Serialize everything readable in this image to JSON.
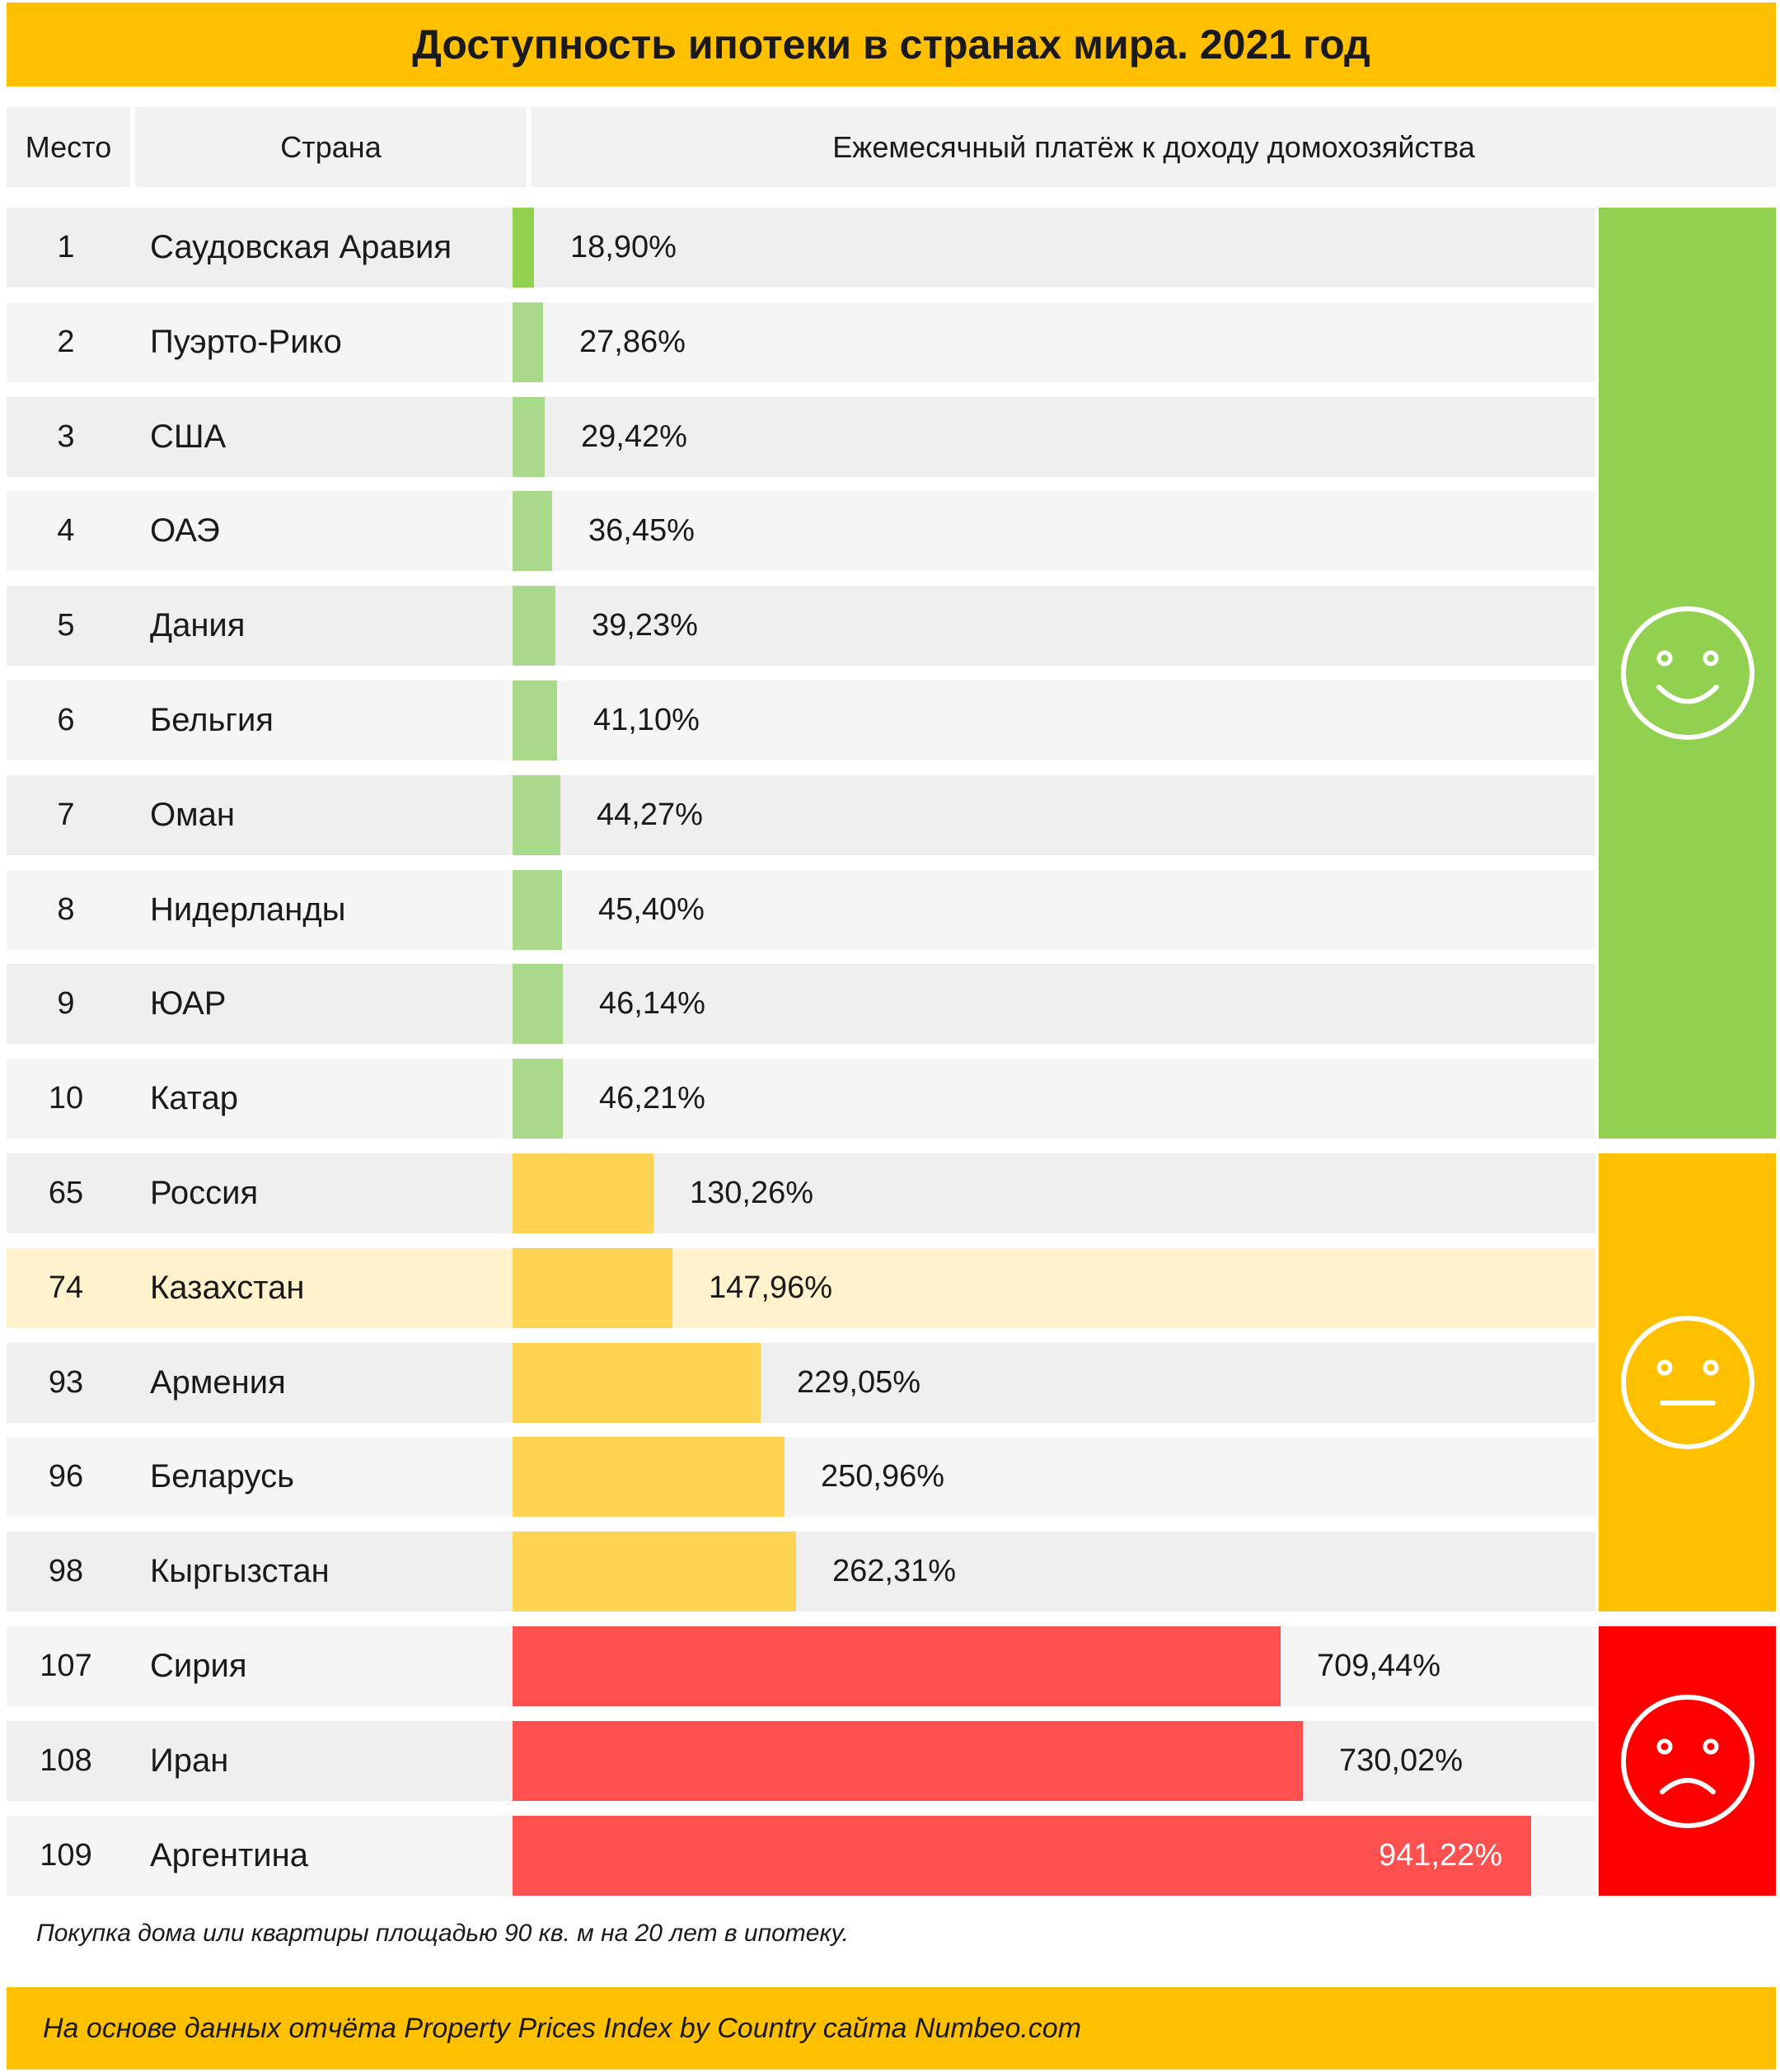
{
  "title": "Доступность ипотеки в странах мира. 2021 год",
  "header": {
    "place": "Место",
    "country": "Страна",
    "metric": "Ежемесячный  платёж к доходу домохозяйства"
  },
  "chart_data": {
    "type": "bar",
    "orientation": "horizontal",
    "title": "Доступность ипотеки в странах мира. 2021 год",
    "xlabel": "Ежемесячный  платёж к доходу домохозяйства",
    "unit": "%",
    "rows": [
      {
        "place": "1",
        "country": "Саудовская Аравия",
        "value": 18.9,
        "label": "18,90%",
        "group": "good"
      },
      {
        "place": "2",
        "country": "Пуэрто-Рико",
        "value": 27.86,
        "label": "27,86%",
        "group": "good"
      },
      {
        "place": "3",
        "country": "США",
        "value": 29.42,
        "label": "29,42%",
        "group": "good"
      },
      {
        "place": "4",
        "country": "ОАЭ",
        "value": 36.45,
        "label": "36,45%",
        "group": "good"
      },
      {
        "place": "5",
        "country": "Дания",
        "value": 39.23,
        "label": "39,23%",
        "group": "good"
      },
      {
        "place": "6",
        "country": "Бельгия",
        "value": 41.1,
        "label": "41,10%",
        "group": "good"
      },
      {
        "place": "7",
        "country": "Оман",
        "value": 44.27,
        "label": "44,27%",
        "group": "good"
      },
      {
        "place": "8",
        "country": "Нидерланды",
        "value": 45.4,
        "label": "45,40%",
        "group": "good"
      },
      {
        "place": "9",
        "country": "ЮАР",
        "value": 46.14,
        "label": "46,14%",
        "group": "good"
      },
      {
        "place": "10",
        "country": "Катар",
        "value": 46.21,
        "label": "46,21%",
        "group": "good"
      },
      {
        "place": "65",
        "country": "Россия",
        "value": 130.26,
        "label": "130,26%",
        "group": "medium"
      },
      {
        "place": "74",
        "country": "Казахстан",
        "value": 147.96,
        "label": "147,96%",
        "group": "medium",
        "highlight": true
      },
      {
        "place": "93",
        "country": "Армения",
        "value": 229.05,
        "label": "229,05%",
        "group": "medium"
      },
      {
        "place": "96",
        "country": "Беларусь",
        "value": 250.96,
        "label": "250,96%",
        "group": "medium"
      },
      {
        "place": "98",
        "country": "Кыргызстан",
        "value": 262.31,
        "label": "262,31%",
        "group": "medium"
      },
      {
        "place": "107",
        "country": "Сирия",
        "value": 709.44,
        "label": "709,44%",
        "group": "bad"
      },
      {
        "place": "108",
        "country": "Иран",
        "value": 730.02,
        "label": "730,02%",
        "group": "bad"
      },
      {
        "place": "109",
        "country": "Аргентина",
        "value": 941.22,
        "label": "941,22%",
        "group": "bad"
      }
    ],
    "xlim": [
      0,
      941.22
    ],
    "grid": false,
    "legend": "none"
  },
  "zones": [
    {
      "group": "good",
      "face": "smile-face-icon",
      "color": "#92D050"
    },
    {
      "group": "medium",
      "face": "neutral-face-icon",
      "color": "#FFC000"
    },
    {
      "group": "bad",
      "face": "sad-face-icon",
      "color": "#FF0000"
    }
  ],
  "colors": {
    "good_bar": "#A9D98A",
    "good_bar_first": "#92D050",
    "medium_bar": "#FFD452",
    "bad_bar": "#FF5050",
    "accent": "#FFC000",
    "row_highlight": "#FFF2CC"
  },
  "note": "Покупка дома или квартиры площадью 90 кв. м на 20 лет в ипотеку.",
  "footer": "На основе данных  отчёта Property Prices Index by Country  сайта Numbeo.com"
}
